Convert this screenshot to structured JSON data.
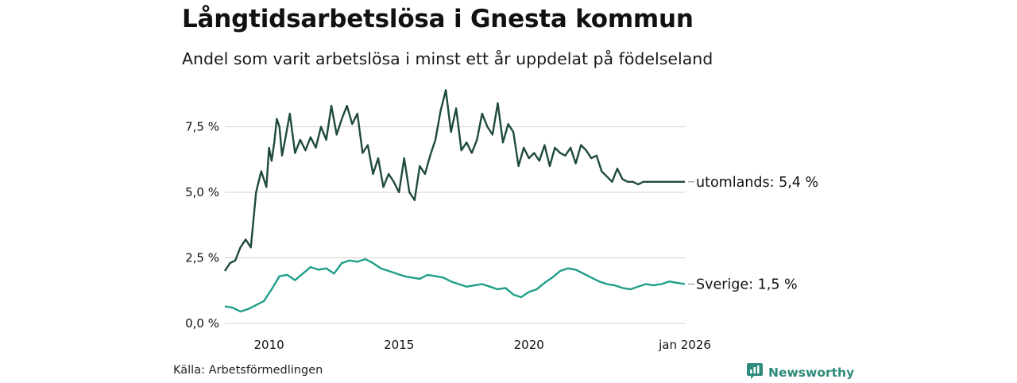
{
  "title": "Långtidsarbetslösa i Gnesta kommun",
  "subtitle": "Andel som varit arbetslösa i minst ett år uppdelat på födelseland",
  "source": "Källa: Arbetsförmedlingen",
  "brand": {
    "name": "Newsworthy",
    "icon": "newsworthy-logo-icon"
  },
  "colors": {
    "foreign": "#1e4a3f",
    "sweden": "#1f9e89",
    "grid": "#d9d9d9",
    "text": "#111111"
  },
  "chart_data": {
    "type": "line",
    "title": "Långtidsarbetslösa i Gnesta kommun",
    "xlabel": "",
    "ylabel": "",
    "xlim": [
      2008.3,
      2026.0
    ],
    "ylim": [
      0,
      9
    ],
    "yticks": [
      0,
      2.5,
      5,
      7.5
    ],
    "ytick_labels": [
      "0,0 %",
      "2,5 %",
      "5,0 %",
      "7,5 %"
    ],
    "xticks": [
      2010,
      2015,
      2020,
      2026
    ],
    "xtick_labels": [
      "2010",
      "2015",
      "2020",
      "jan 2026"
    ],
    "grid": true,
    "series": [
      {
        "name": "utomlands",
        "end_label": "utomlands: 5,4 %",
        "color": "#1e4a3f",
        "x": [
          2008.3,
          2008.5,
          2008.7,
          2008.9,
          2009.1,
          2009.3,
          2009.5,
          2009.6,
          2009.7,
          2009.8,
          2009.9,
          2010.0,
          2010.1,
          2010.2,
          2010.3,
          2010.4,
          2010.5,
          2010.6,
          2010.8,
          2011.0,
          2011.2,
          2011.4,
          2011.6,
          2011.8,
          2012.0,
          2012.2,
          2012.4,
          2012.6,
          2012.8,
          2013.0,
          2013.2,
          2013.4,
          2013.6,
          2013.8,
          2014.0,
          2014.2,
          2014.4,
          2014.6,
          2014.8,
          2015.0,
          2015.2,
          2015.4,
          2015.6,
          2015.8,
          2016.0,
          2016.2,
          2016.4,
          2016.6,
          2016.8,
          2017.0,
          2017.2,
          2017.4,
          2017.6,
          2017.8,
          2018.0,
          2018.2,
          2018.4,
          2018.6,
          2018.7,
          2018.8,
          2019.0,
          2019.2,
          2019.4,
          2019.6,
          2019.8,
          2020.0,
          2020.2,
          2020.4,
          2020.6,
          2020.8,
          2021.0,
          2021.2,
          2021.4,
          2021.6,
          2021.8,
          2022.0,
          2022.2,
          2022.4,
          2022.6,
          2022.8,
          2023.0,
          2023.2,
          2023.4,
          2023.6,
          2023.8,
          2024.0,
          2024.2,
          2024.4,
          2024.6,
          2024.8,
          2025.0,
          2025.2,
          2025.4,
          2025.6,
          2025.8,
          2026.0
        ],
        "values": [
          2.0,
          2.3,
          2.4,
          2.9,
          3.2,
          2.9,
          5.0,
          5.4,
          5.8,
          5.5,
          5.2,
          6.7,
          6.2,
          6.9,
          7.8,
          7.5,
          6.4,
          6.9,
          8.0,
          6.5,
          7.0,
          6.6,
          7.1,
          6.7,
          7.5,
          7.0,
          8.3,
          7.2,
          7.8,
          8.3,
          7.6,
          8.0,
          6.5,
          6.8,
          5.7,
          6.3,
          5.2,
          5.7,
          5.4,
          5.0,
          6.3,
          5.0,
          4.7,
          6.0,
          5.7,
          6.4,
          7.0,
          8.1,
          8.9,
          7.3,
          8.2,
          6.6,
          6.9,
          6.5,
          7.0,
          8.0,
          7.5,
          7.2,
          7.8,
          8.4,
          6.9,
          7.6,
          7.3,
          6.0,
          6.7,
          6.3,
          6.5,
          6.2,
          6.8,
          6.0,
          6.7,
          6.5,
          6.4,
          6.7,
          6.1,
          6.8,
          6.6,
          6.3,
          6.4,
          5.8,
          5.6,
          5.4,
          5.9,
          5.5,
          5.4,
          5.4,
          5.3,
          5.4,
          5.4,
          5.4,
          5.4,
          5.4,
          5.4,
          5.4,
          5.4,
          5.4
        ],
        "note": "values approximate; series ends at 5,4 %"
      },
      {
        "name": "Sverige",
        "end_label": "Sverige: 1,5 %",
        "color": "#1f9e89",
        "x": [
          2008.3,
          2008.6,
          2008.9,
          2009.2,
          2009.5,
          2009.8,
          2010.1,
          2010.4,
          2010.7,
          2011.0,
          2011.3,
          2011.6,
          2011.9,
          2012.2,
          2012.5,
          2012.8,
          2013.1,
          2013.4,
          2013.7,
          2014.0,
          2014.3,
          2014.6,
          2014.9,
          2015.2,
          2015.5,
          2015.8,
          2016.1,
          2016.4,
          2016.7,
          2017.0,
          2017.3,
          2017.6,
          2017.9,
          2018.2,
          2018.5,
          2018.8,
          2019.1,
          2019.4,
          2019.7,
          2020.0,
          2020.3,
          2020.6,
          2020.9,
          2021.2,
          2021.5,
          2021.8,
          2022.1,
          2022.4,
          2022.7,
          2023.0,
          2023.3,
          2023.6,
          2023.9,
          2024.2,
          2024.5,
          2024.8,
          2025.1,
          2025.4,
          2025.7,
          2026.0
        ],
        "values": [
          0.65,
          0.6,
          0.45,
          0.55,
          0.7,
          0.85,
          1.3,
          1.8,
          1.85,
          1.65,
          1.9,
          2.15,
          2.05,
          2.1,
          1.9,
          2.3,
          2.4,
          2.35,
          2.45,
          2.3,
          2.1,
          2.0,
          1.9,
          1.8,
          1.75,
          1.7,
          1.85,
          1.8,
          1.75,
          1.6,
          1.5,
          1.4,
          1.45,
          1.5,
          1.4,
          1.3,
          1.35,
          1.1,
          1.0,
          1.2,
          1.3,
          1.55,
          1.75,
          2.0,
          2.1,
          2.05,
          1.9,
          1.75,
          1.6,
          1.5,
          1.45,
          1.35,
          1.3,
          1.4,
          1.5,
          1.45,
          1.5,
          1.6,
          1.55,
          1.5
        ],
        "note": "values approximate; series ends at 1,5 %"
      }
    ]
  }
}
